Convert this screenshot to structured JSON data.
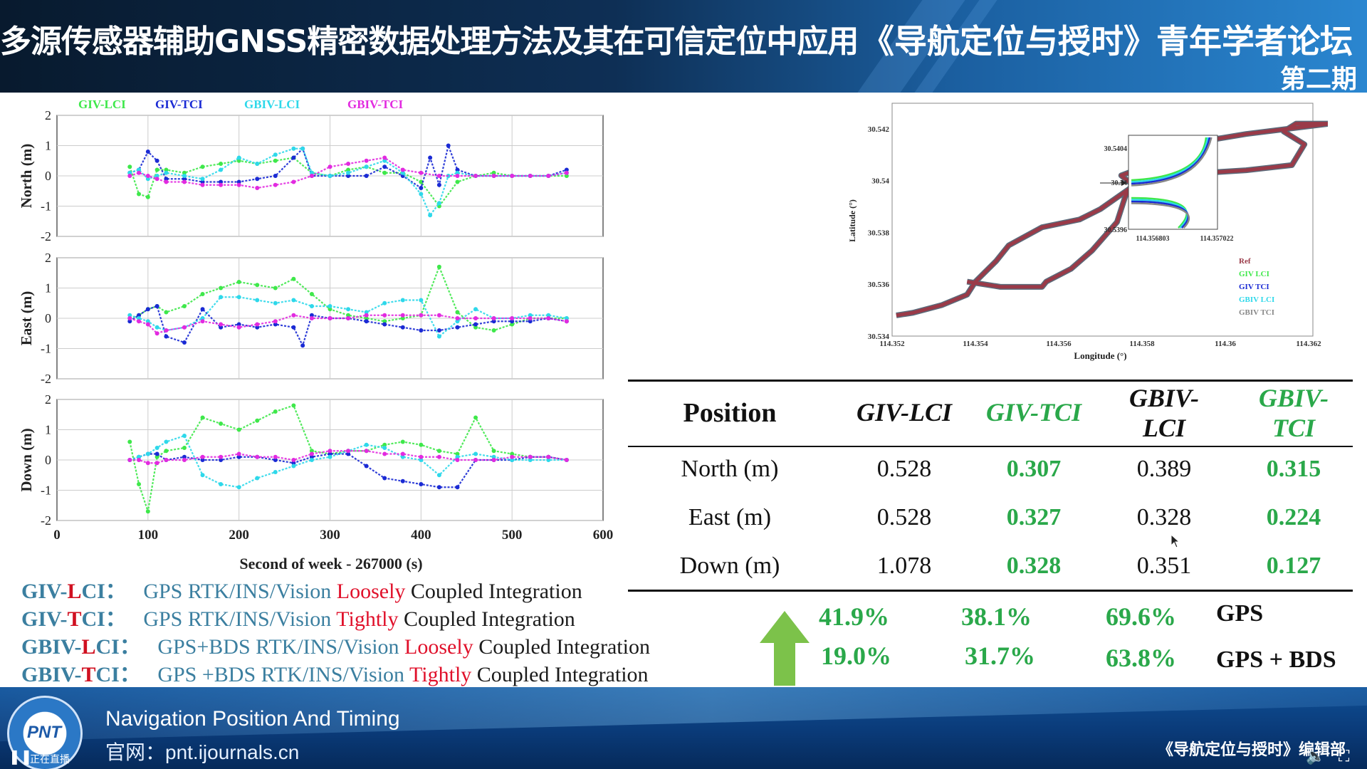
{
  "header": {
    "title": "多源传感器辅助GNSS精密数据处理方法及其在可信定位中应用",
    "forum": "《导航定位与授时》青年学者论坛",
    "issue": "第二期"
  },
  "footer": {
    "line1": "Navigation Position And Timing",
    "line2": "官网：pnt.ijournals.cn",
    "editorial": "《导航定位与授时》编辑部",
    "logo_text": "PNT",
    "live_label": "正在直播"
  },
  "colors": {
    "GIV_LCI": "#3ee84a",
    "GIV_TCI": "#1a2ad4",
    "GBIV_LCI": "#2ed8ea",
    "GBIV_TCI": "#e22ae0",
    "ref": "#9a3a48",
    "green": "#2aa84a",
    "red": "#e0102a"
  },
  "icons": {
    "arrow": "up-arrow-icon",
    "pause": "pause-icon",
    "volume": "volume-icon",
    "fullscreen": "fullscreen-icon",
    "cursor": "mouse-pointer-icon"
  },
  "chart_data": [
    {
      "type": "scatter",
      "title": "",
      "ylabel": "North (m)",
      "xlabel": "",
      "xlim": [
        0,
        600
      ],
      "ylim": [
        -2,
        2
      ],
      "grid": true,
      "legend": [
        "GIV-LCI",
        "GIV-TCI",
        "GBIV-LCI",
        "GBIV-TCI"
      ],
      "legend_position": "top",
      "x_ticks": [],
      "y_ticks": [
        "2",
        "1",
        "0",
        "-1",
        "-2"
      ],
      "series": [
        {
          "name": "GIV-LCI",
          "x": [
            80,
            90,
            100,
            110,
            120,
            140,
            160,
            180,
            200,
            220,
            240,
            260,
            280,
            300,
            320,
            340,
            360,
            380,
            400,
            420,
            440,
            460,
            480,
            500,
            520,
            540,
            560
          ],
          "y": [
            0.3,
            -0.6,
            -0.7,
            0.2,
            0.2,
            0.1,
            0.3,
            0.4,
            0.5,
            0.4,
            0.5,
            0.6,
            0.1,
            0.0,
            0.2,
            0.3,
            0.1,
            0.1,
            -0.2,
            -1.0,
            -0.2,
            0.0,
            0.1,
            0.0,
            0.0,
            0.0,
            0.0
          ]
        },
        {
          "name": "GIV-TCI",
          "x": [
            80,
            90,
            100,
            110,
            120,
            140,
            160,
            180,
            200,
            220,
            240,
            260,
            270,
            280,
            300,
            320,
            340,
            360,
            380,
            400,
            410,
            420,
            430,
            440,
            460,
            480,
            500,
            520,
            540,
            560
          ],
          "y": [
            0.1,
            0.2,
            0.8,
            0.5,
            -0.1,
            -0.1,
            -0.2,
            -0.2,
            -0.2,
            -0.1,
            0.0,
            0.6,
            0.9,
            0.0,
            0.0,
            0.0,
            0.0,
            0.3,
            0.0,
            -0.4,
            0.6,
            -0.3,
            1.0,
            0.2,
            0.0,
            0.0,
            0.0,
            0.0,
            0.0,
            0.2
          ]
        },
        {
          "name": "GBIV-LCI",
          "x": [
            80,
            90,
            100,
            110,
            120,
            140,
            160,
            180,
            200,
            220,
            240,
            260,
            270,
            280,
            300,
            320,
            340,
            360,
            380,
            400,
            410,
            420,
            430,
            440,
            460,
            480,
            500,
            520,
            540,
            560
          ],
          "y": [
            0.1,
            0.2,
            -0.1,
            0.0,
            0.1,
            0.0,
            -0.1,
            0.2,
            0.6,
            0.4,
            0.7,
            0.9,
            0.9,
            0.1,
            0.0,
            0.1,
            0.3,
            0.5,
            0.1,
            -0.6,
            -1.3,
            -0.9,
            0.0,
            0.1,
            0.0,
            0.0,
            0.0,
            0.0,
            0.0,
            0.1
          ]
        },
        {
          "name": "GBIV-TCI",
          "x": [
            80,
            90,
            100,
            110,
            120,
            140,
            160,
            180,
            200,
            220,
            240,
            260,
            280,
            300,
            320,
            340,
            360,
            380,
            400,
            420,
            440,
            460,
            480,
            500,
            520,
            540,
            560
          ],
          "y": [
            0.0,
            0.1,
            0.0,
            -0.1,
            -0.2,
            -0.2,
            -0.3,
            -0.3,
            -0.3,
            -0.4,
            -0.3,
            -0.2,
            0.0,
            0.3,
            0.4,
            0.5,
            0.6,
            0.2,
            0.1,
            0.0,
            0.0,
            0.0,
            0.0,
            0.0,
            0.0,
            0.0,
            0.1
          ]
        }
      ]
    },
    {
      "type": "scatter",
      "title": "",
      "ylabel": "East (m)",
      "xlabel": "",
      "xlim": [
        0,
        600
      ],
      "ylim": [
        -2,
        2
      ],
      "grid": true,
      "x_ticks": [],
      "y_ticks": [
        "2",
        "1",
        "0",
        "-1",
        "-2"
      ],
      "series": [
        {
          "name": "GIV-LCI",
          "x": [
            80,
            90,
            100,
            110,
            120,
            140,
            160,
            180,
            200,
            220,
            240,
            260,
            280,
            300,
            320,
            340,
            360,
            380,
            400,
            420,
            440,
            460,
            480,
            500,
            520,
            540,
            560
          ],
          "y": [
            0.0,
            0.1,
            0.3,
            0.4,
            0.2,
            0.4,
            0.8,
            1.0,
            1.2,
            1.1,
            1.0,
            1.3,
            0.8,
            0.3,
            0.1,
            0.0,
            -0.1,
            0.0,
            0.1,
            1.7,
            0.2,
            -0.3,
            -0.4,
            -0.2,
            0.0,
            0.0,
            0.0
          ]
        },
        {
          "name": "GIV-TCI",
          "x": [
            80,
            90,
            100,
            110,
            120,
            140,
            160,
            180,
            200,
            220,
            240,
            260,
            270,
            280,
            300,
            320,
            340,
            360,
            380,
            400,
            420,
            440,
            460,
            480,
            500,
            520,
            540,
            560
          ],
          "y": [
            -0.1,
            0.1,
            0.3,
            0.4,
            -0.6,
            -0.8,
            0.3,
            -0.3,
            -0.2,
            -0.3,
            -0.2,
            -0.3,
            -0.9,
            0.1,
            0.0,
            0.0,
            -0.1,
            -0.2,
            -0.3,
            -0.4,
            -0.4,
            -0.3,
            -0.2,
            -0.1,
            -0.1,
            -0.1,
            0.0,
            -0.1
          ]
        },
        {
          "name": "GBIV-LCI",
          "x": [
            80,
            90,
            100,
            110,
            120,
            140,
            160,
            180,
            200,
            220,
            240,
            260,
            280,
            300,
            320,
            340,
            360,
            380,
            400,
            420,
            440,
            460,
            480,
            500,
            520,
            540,
            560
          ],
          "y": [
            0.1,
            0.0,
            -0.1,
            -0.3,
            -0.4,
            -0.3,
            0.0,
            0.7,
            0.7,
            0.6,
            0.5,
            0.6,
            0.4,
            0.4,
            0.3,
            0.2,
            0.5,
            0.6,
            0.6,
            -0.6,
            -0.1,
            0.3,
            0.0,
            0.0,
            0.1,
            0.1,
            0.0
          ]
        },
        {
          "name": "GBIV-TCI",
          "x": [
            80,
            90,
            100,
            110,
            120,
            140,
            160,
            180,
            200,
            220,
            240,
            260,
            280,
            300,
            320,
            340,
            360,
            380,
            400,
            420,
            440,
            460,
            480,
            500,
            520,
            540,
            560
          ],
          "y": [
            0.0,
            -0.1,
            -0.2,
            -0.5,
            -0.4,
            -0.3,
            -0.1,
            -0.2,
            -0.3,
            -0.2,
            -0.1,
            0.1,
            0.0,
            0.0,
            0.0,
            0.1,
            0.1,
            0.1,
            0.1,
            0.1,
            0.0,
            0.0,
            0.0,
            0.0,
            0.0,
            0.0,
            -0.1
          ]
        }
      ]
    },
    {
      "type": "scatter",
      "title": "",
      "ylabel": "Down (m)",
      "xlabel": "Second of week - 267000 (s)",
      "xlim": [
        0,
        600
      ],
      "ylim": [
        -2,
        2
      ],
      "grid": true,
      "x_ticks": [
        "0",
        "100",
        "200",
        "300",
        "400",
        "500",
        "600"
      ],
      "y_ticks": [
        "2",
        "1",
        "0",
        "-1",
        "-2"
      ],
      "series": [
        {
          "name": "GIV-LCI",
          "x": [
            80,
            90,
            100,
            110,
            120,
            140,
            160,
            180,
            200,
            220,
            240,
            260,
            280,
            300,
            320,
            340,
            360,
            380,
            400,
            420,
            440,
            460,
            480,
            500,
            520,
            540,
            560
          ],
          "y": [
            0.6,
            -0.8,
            -1.7,
            0.1,
            0.3,
            0.4,
            1.4,
            1.2,
            1.0,
            1.3,
            1.6,
            1.8,
            0.3,
            0.2,
            0.3,
            0.3,
            0.5,
            0.6,
            0.5,
            0.3,
            0.2,
            1.4,
            0.3,
            0.2,
            0.1,
            0.1,
            0.0
          ]
        },
        {
          "name": "GIV-TCI",
          "x": [
            80,
            90,
            100,
            110,
            120,
            140,
            160,
            180,
            200,
            220,
            240,
            260,
            280,
            300,
            320,
            340,
            360,
            380,
            400,
            420,
            440,
            460,
            480,
            500,
            520,
            540,
            560
          ],
          "y": [
            0.0,
            0.1,
            0.2,
            0.2,
            0.0,
            0.1,
            0.0,
            0.0,
            0.1,
            0.1,
            0.0,
            -0.1,
            0.1,
            0.2,
            0.2,
            -0.2,
            -0.6,
            -0.7,
            -0.8,
            -0.9,
            -0.9,
            0.0,
            0.0,
            0.0,
            0.1,
            0.1,
            0.0
          ]
        },
        {
          "name": "GBIV-LCI",
          "x": [
            80,
            90,
            100,
            110,
            120,
            140,
            160,
            180,
            200,
            220,
            240,
            260,
            280,
            300,
            320,
            340,
            360,
            380,
            400,
            420,
            440,
            460,
            480,
            500,
            520,
            540,
            560
          ],
          "y": [
            0.0,
            0.1,
            0.2,
            0.4,
            0.6,
            0.8,
            -0.5,
            -0.8,
            -0.9,
            -0.6,
            -0.4,
            -0.2,
            0.0,
            0.1,
            0.3,
            0.5,
            0.4,
            0.1,
            0.0,
            -0.5,
            0.1,
            0.2,
            0.1,
            0.0,
            0.0,
            0.0,
            0.0
          ]
        },
        {
          "name": "GBIV-TCI",
          "x": [
            80,
            90,
            100,
            110,
            120,
            140,
            160,
            180,
            200,
            220,
            240,
            260,
            280,
            300,
            320,
            340,
            360,
            380,
            400,
            420,
            440,
            460,
            480,
            500,
            520,
            540,
            560
          ],
          "y": [
            0.0,
            0.0,
            -0.1,
            -0.1,
            0.0,
            0.0,
            0.1,
            0.1,
            0.2,
            0.1,
            0.1,
            0.0,
            0.2,
            0.3,
            0.3,
            0.3,
            0.2,
            0.2,
            0.1,
            0.1,
            0.0,
            0.0,
            0.0,
            0.1,
            0.1,
            0.1,
            0.0
          ]
        }
      ]
    },
    {
      "type": "line",
      "title": "",
      "xlabel": "Longitude (°)",
      "ylabel": "Latitude (°)",
      "xlim": [
        114.352,
        114.362
      ],
      "ylim": [
        30.534,
        30.5423
      ],
      "x_ticks": [
        "114.352",
        "114.354",
        "114.356",
        "114.358",
        "114.36",
        "114.362"
      ],
      "y_ticks": [
        "30.542",
        "30.54",
        "30.538",
        "30.536",
        "30.534"
      ],
      "legend": [
        "Ref",
        "GIV LCI",
        "GIV TCI",
        "GBIV LCI",
        "GBIV TCI"
      ],
      "legend_position": "bottom-right",
      "series": [
        {
          "name": "Ref",
          "x": [
            114.3521,
            114.3525,
            114.3532,
            114.3538,
            114.354,
            114.3545,
            114.3548,
            114.3556,
            114.3565,
            114.357,
            114.3578,
            114.3575,
            114.3585,
            114.359,
            114.3605,
            114.3625,
            114.3617,
            114.3614,
            114.3619,
            114.3616,
            114.3605,
            114.3585,
            114.358,
            114.3576,
            114.3574,
            114.3568,
            114.3563,
            114.3557,
            114.3556,
            114.3552,
            114.3546,
            114.3538
          ],
          "y": [
            30.5348,
            30.5349,
            30.5352,
            30.5356,
            30.5361,
            30.5369,
            30.5375,
            30.5382,
            30.5385,
            30.5389,
            30.5398,
            30.5402,
            30.5408,
            30.5414,
            30.5418,
            30.5422,
            30.5422,
            30.5419,
            30.5414,
            30.5406,
            30.5404,
            30.5402,
            30.5405,
            30.5394,
            30.5384,
            30.5373,
            30.5366,
            30.5361,
            30.5359,
            30.5359,
            30.5359,
            30.5361
          ]
        }
      ],
      "inset": {
        "x_ticks": [
          "114.356803",
          "114.357022"
        ],
        "y_ticks": [
          "30.5404",
          "30.54",
          "30.5396"
        ]
      }
    }
  ],
  "error_table": {
    "headers": {
      "position": "Position",
      "c1": "GIV-LCI",
      "c2": "GIV-TCI",
      "c3_line1": "GBIV-",
      "c3_line2": "LCI",
      "c4_line1": "GBIV-",
      "c4_line2": "TCI"
    },
    "rows": [
      {
        "label": "North (m)",
        "v1": "0.528",
        "v2": "0.307",
        "v3": "0.389",
        "v4": "0.315"
      },
      {
        "label": "East (m)",
        "v1": "0.528",
        "v2": "0.327",
        "v3": "0.328",
        "v4": "0.224"
      },
      {
        "label": "Down (m)",
        "v1": "1.078",
        "v2": "0.328",
        "v3": "0.351",
        "v4": "0.127"
      }
    ],
    "improvements": {
      "gps": {
        "p1": "41.9%",
        "p2": "38.1%",
        "p3": "69.6%",
        "label": "GPS"
      },
      "gps_bds": {
        "p1": "19.0%",
        "p2": "31.7%",
        "p3": "63.8%",
        "label": "GPS + BDS"
      }
    }
  },
  "legend_text": [
    {
      "pre": "GIV-",
      "mid": "L",
      "post": "CI：",
      "desc1": "GPS RTK/INS/Vision ",
      "red": "Loosely",
      "desc2": " Coupled Integration"
    },
    {
      "pre": "GIV-",
      "mid": "T",
      "post": "CI：",
      "desc1": "GPS RTK/INS/Vision ",
      "red": "Tightly",
      "desc2": " Coupled Integration"
    },
    {
      "pre": "GBIV-",
      "mid": "L",
      "post": "CI：",
      "desc1": "GPS+BDS RTK/INS/Vision ",
      "red": "Loosely",
      "desc2": " Coupled Integration"
    },
    {
      "pre": "GBIV-",
      "mid": "T",
      "post": "CI：",
      "desc1": "GPS +BDS RTK/INS/Vision ",
      "red": "Tightly",
      "desc2": " Coupled Integration"
    }
  ]
}
